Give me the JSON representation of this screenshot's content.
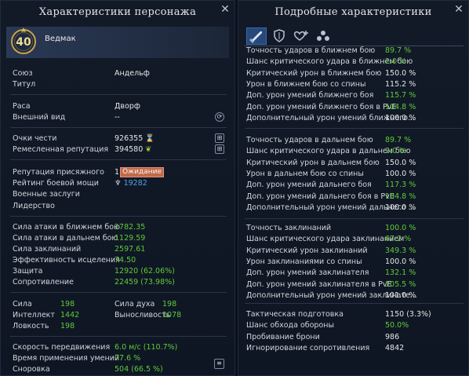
{
  "left": {
    "title": "Характеристики персонажа",
    "level": "40",
    "name": "Ведмак",
    "info1": [
      {
        "label": "Союз",
        "value": "Андельф"
      },
      {
        "label": "Титул",
        "value": ""
      }
    ],
    "info2": [
      {
        "label": "Раса",
        "value": "Дворф"
      },
      {
        "label": "Внешний вид",
        "value": "--"
      }
    ],
    "honor_label": "Очки чести",
    "honor_value": "926355",
    "craft_label": "Ремесленная репутация",
    "craft_value": "394580",
    "juror_label": "Репутация присяжного",
    "juror_value": "1",
    "status_label": "Ожидание",
    "power_label": "Рейтинг боевой мощи",
    "power_value": "19282",
    "merits_label": "Военные заслуги",
    "leader_label": "Лидерство",
    "combat": [
      {
        "label": "Сила атаки в ближнем бою",
        "value": "1782.35"
      },
      {
        "label": "Сила атаки в дальнем бою",
        "value": "1129.59"
      },
      {
        "label": "Сила заклинаний",
        "value": "2597.61"
      },
      {
        "label": "Эффективность исцеления",
        "value": "74.50"
      },
      {
        "label": "Защита",
        "value": "12920 (62.06%)"
      },
      {
        "label": "Сопротивление",
        "value": "22459 (73.98%)"
      }
    ],
    "attrs": [
      {
        "label": "Сила",
        "value": "198",
        "label2": "Сила духа",
        "value2": "198"
      },
      {
        "label": "Интеллект",
        "value": "1442",
        "label2": "Выносливость",
        "value2": "1078"
      },
      {
        "label": "Ловкость",
        "value": "198",
        "label2": "",
        "value2": ""
      }
    ],
    "misc": [
      {
        "label": "Скорость передвижения",
        "value": "6.0 м/с (110.7%)"
      },
      {
        "label": "Время применения умений",
        "value": "77.6 %"
      },
      {
        "label": "Сноровка",
        "value": "504 (66.5 %)"
      }
    ]
  },
  "right": {
    "title": "Подробные характеристики",
    "tabs": [
      {
        "icon": "sword-icon"
      },
      {
        "icon": "shield-icon"
      },
      {
        "icon": "heart-plus-icon"
      },
      {
        "icon": "orbs-icon"
      }
    ],
    "melee": [
      {
        "label": "Точность ударов в ближнем бою",
        "value": "89.7 %",
        "green": true
      },
      {
        "label": "Шанс критического удара в ближнем бою",
        "value": "2.0 %",
        "green": true
      },
      {
        "label": "Критический урон в ближнем бою",
        "value": "150.0 %",
        "green": false
      },
      {
        "label": "Урон в ближнем бою со спины",
        "value": "115.2 %",
        "green": false
      },
      {
        "label": "Доп. урон умений ближнего боя",
        "value": "115.7 %",
        "green": true
      },
      {
        "label": "Доп. урон умений ближнего боя в PvE",
        "value": "104.8 %",
        "green": true
      },
      {
        "label": "Дополнительный урон умений ближнего...",
        "value": "100.0 %",
        "green": false
      }
    ],
    "ranged": [
      {
        "label": "Точность ударов в дальнем бою",
        "value": "89.7 %",
        "green": true
      },
      {
        "label": "Шанс критического удара в дальнем бою",
        "value": "2.0 %",
        "green": true
      },
      {
        "label": "Критический урон в дальнем бою",
        "value": "150.0 %",
        "green": false
      },
      {
        "label": "Урон в дальнем бою со спины",
        "value": "100.0 %",
        "green": false
      },
      {
        "label": "Доп. урон умений дальнего боя",
        "value": "117.3 %",
        "green": true
      },
      {
        "label": "Доп. урон умений дальнего боя в PvE",
        "value": "104.8 %",
        "green": true
      },
      {
        "label": "Дополнительный урон умений дальнего ...",
        "value": "100.0 %",
        "green": false
      }
    ],
    "spell": [
      {
        "label": "Точность заклинаний",
        "value": "100.0 %",
        "green": true
      },
      {
        "label": "Шанс критического удара заклинанием",
        "value": "67.2 %",
        "green": true
      },
      {
        "label": "Критический урон заклинаний",
        "value": "349.3 %",
        "green": true
      },
      {
        "label": "Урон заклинаниями со спины",
        "value": "100.0 %",
        "green": false
      },
      {
        "label": "Доп. урон умений заклинателя",
        "value": "132.1 %",
        "green": true
      },
      {
        "label": "Доп. урон умений заклинателя в PvE",
        "value": "105.5 %",
        "green": true
      },
      {
        "label": "Дополнительный урон умений заклинате...",
        "value": "101.0 %",
        "green": false
      }
    ],
    "other": [
      {
        "label": "Тактическая подготовка",
        "value": "1150 (3.3%)",
        "green": false
      },
      {
        "label": "Шанс обхода обороны",
        "value": "50.0%",
        "green": true
      },
      {
        "label": "Пробивание брони",
        "value": "986",
        "green": false
      },
      {
        "label": "Игнорирование сопротивления",
        "value": "4842",
        "green": false
      }
    ]
  }
}
